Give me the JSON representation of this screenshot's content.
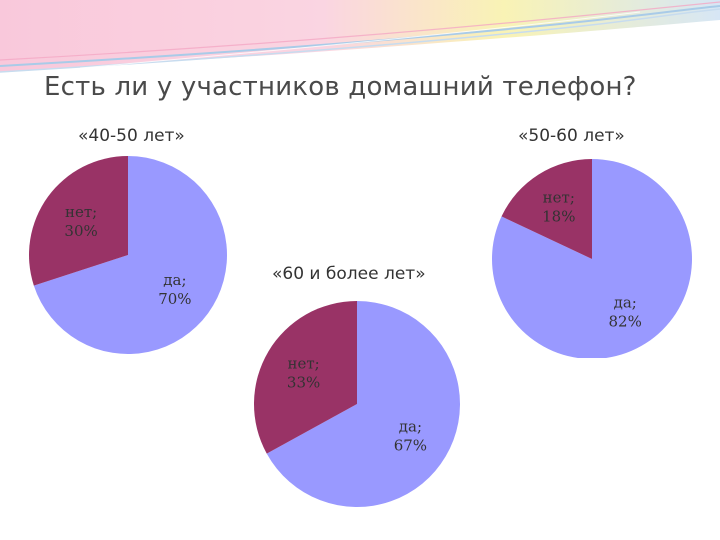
{
  "slide": {
    "title": "Есть ли у участников домашний телефон?"
  },
  "colors": {
    "yes": "#9999ff",
    "no": "#993366",
    "banner_pink": "#f7b6cf",
    "banner_blue": "#b7d4ef",
    "banner_yellow": "#f7ef9c"
  },
  "chart_data": [
    {
      "type": "pie",
      "title": "«40-50 лет»",
      "categories": [
        "да",
        "нет"
      ],
      "values": [
        70,
        30
      ],
      "labels": [
        {
          "name": "да;",
          "value": "70%"
        },
        {
          "name": "нет;",
          "value": "30%"
        }
      ],
      "legend": "none"
    },
    {
      "type": "pie",
      "title": "«50-60 лет»",
      "categories": [
        "да",
        "нет"
      ],
      "values": [
        82,
        18
      ],
      "labels": [
        {
          "name": "да;",
          "value": "82%"
        },
        {
          "name": "нет;",
          "value": "18%"
        }
      ],
      "legend": "none"
    },
    {
      "type": "pie",
      "title": "«60 и более лет»",
      "categories": [
        "да",
        "нет"
      ],
      "values": [
        67,
        33
      ],
      "labels": [
        {
          "name": "да;",
          "value": "67%"
        },
        {
          "name": "нет;",
          "value": "33%"
        }
      ],
      "legend": "none"
    }
  ]
}
